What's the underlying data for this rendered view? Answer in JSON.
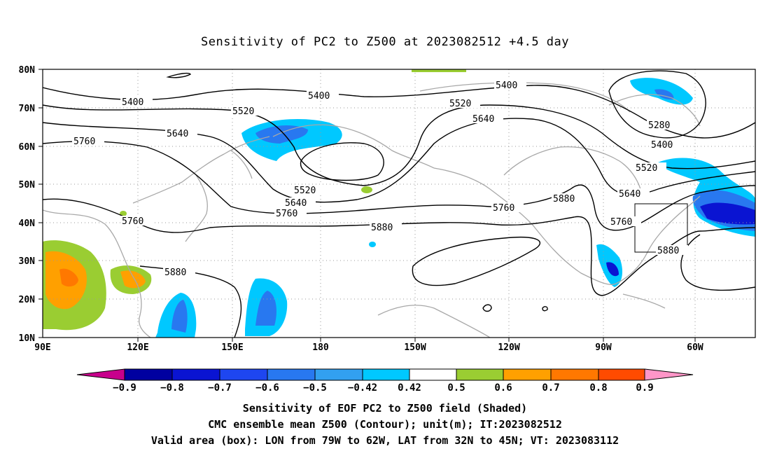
{
  "title": "Sensitivity of PC2 to Z500 at 2023082512 +4.5 day",
  "lat_labels": [
    "80N",
    "70N",
    "60N",
    "50N",
    "40N",
    "30N",
    "20N",
    "10N"
  ],
  "lon_labels": [
    "90E",
    "120E",
    "150E",
    "180",
    "150W",
    "120W",
    "90W",
    "60W"
  ],
  "contours": {
    "c5400_a": "5400",
    "c5400_b": "5400",
    "c5400_c": "5400",
    "c5400_d": "5400",
    "c5520_a": "5520",
    "c5520_b": "5520",
    "c5520_c": "5520",
    "c5520_d": "5520",
    "c5640_a": "5640",
    "c5640_b": "5640",
    "c5640_c": "5640",
    "c5640_d": "5640",
    "c5760_a": "5760",
    "c5760_b": "5760",
    "c5760_c": "5760",
    "c5760_d": "5760",
    "c5760_e": "5760",
    "c5880_a": "5880",
    "c5880_b": "5880",
    "c5880_c": "5880",
    "c5880_d": "5880",
    "c5280": "5280"
  },
  "colorbar": {
    "labels": [
      "−0.9",
      "−0.8",
      "−0.7",
      "−0.6",
      "−0.5",
      "−0.42",
      "0.42",
      "0.5",
      "0.6",
      "0.7",
      "0.8",
      "0.9"
    ],
    "colors": [
      "#c8008c",
      "#0000a0",
      "#0a14d2",
      "#1e46f0",
      "#2878f0",
      "#32a0f0",
      "#00c8ff",
      "#ffffff",
      "#9acd32",
      "#ffa000",
      "#ff7800",
      "#ff4b00",
      "#ff1400",
      "#ff0000",
      "#ff96c8"
    ]
  },
  "footer": {
    "line1": "Sensitivity of EOF PC2 to Z500 field (Shaded)",
    "line2": "CMC ensemble mean Z500 (Contour); unit(m); IT:2023082512",
    "line3": "Valid area (box): LON from 79W to 62W, LAT from 32N to 45N; VT: 2023083112"
  }
}
